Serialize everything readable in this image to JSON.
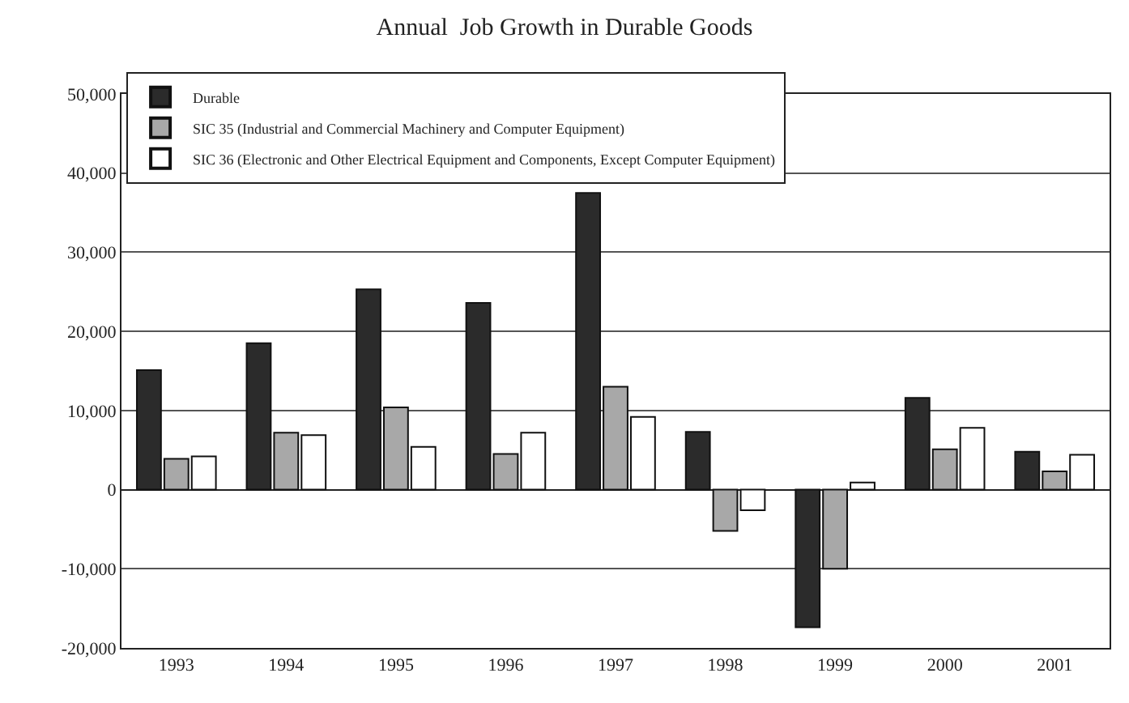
{
  "chart_data": {
    "type": "bar",
    "title": "Annual  Job Growth in Durable Goods",
    "categories": [
      "1993",
      "1994",
      "1995",
      "1996",
      "1997",
      "1998",
      "1999",
      "2000",
      "2001"
    ],
    "series": [
      {
        "name": "Durable",
        "color": "#2b2b2b",
        "values": [
          15100,
          18500,
          25300,
          23600,
          37500,
          7300,
          -17400,
          11600,
          4800
        ]
      },
      {
        "name": "SIC 35 (Industrial and Commercial Machinery and Computer Equipment)",
        "color": "#a8a8a8",
        "values": [
          3900,
          7200,
          10400,
          4500,
          13000,
          -5200,
          -10000,
          5100,
          2300
        ]
      },
      {
        "name": "SIC 36 (Electronic and Other Electrical Equipment and Components, Except Computer Equipment)",
        "color": "#ffffff",
        "values": [
          4200,
          6900,
          5400,
          7200,
          9200,
          -2600,
          900,
          7800,
          4400
        ]
      }
    ],
    "ylim": [
      -20000,
      50000
    ],
    "yticks": [
      {
        "value": -20000,
        "label": "-20,000"
      },
      {
        "value": -10000,
        "label": "-10,000"
      },
      0,
      {
        "value": 10000,
        "label": "10,000"
      },
      {
        "value": 20000,
        "label": "20,000"
      },
      {
        "value": 30000,
        "label": "30,000"
      },
      {
        "value": 40000,
        "label": "40,000"
      },
      {
        "value": 50000,
        "label": "50,000"
      }
    ],
    "grid": "y",
    "legend": "top left"
  }
}
